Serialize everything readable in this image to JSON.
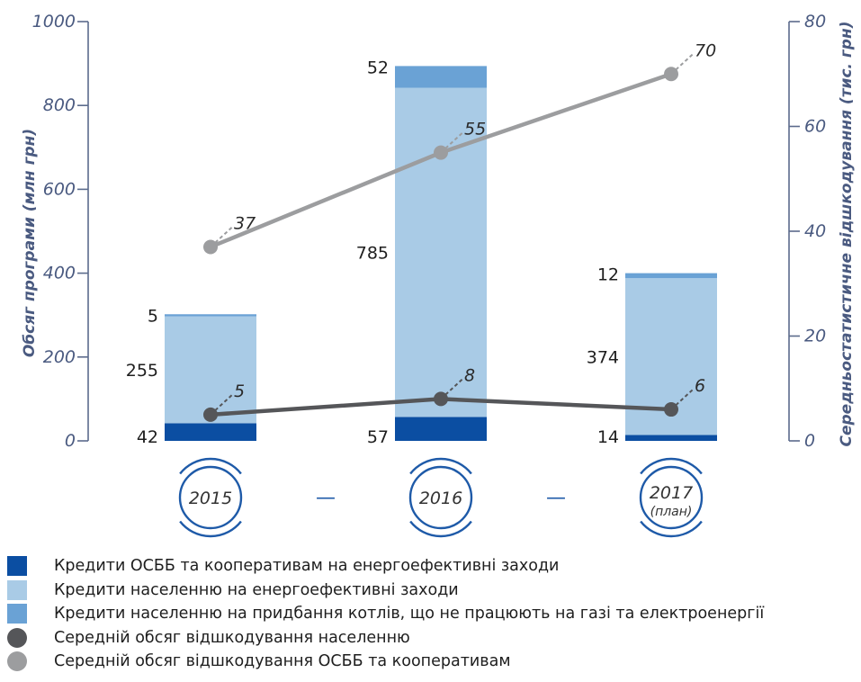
{
  "chart_data": {
    "type": "bar",
    "categories": [
      "2015",
      "2016",
      "2017"
    ],
    "category_sublabels": [
      "",
      "",
      "(план)"
    ],
    "left_axis": {
      "label": "Обсяг програми (млн грн)",
      "ylim": [
        0,
        1000
      ],
      "ticks": [
        "0",
        "200",
        "400",
        "600",
        "800",
        "1000"
      ]
    },
    "right_axis": {
      "label": "Середньостатистичне відшкодування (тис. грн)",
      "ylim": [
        0,
        80
      ],
      "ticks": [
        "0",
        "20",
        "40",
        "60",
        "80"
      ]
    },
    "bar_series": [
      {
        "name": "Кредити ОСББ та кооперативам на енергоефективні заходи",
        "color": "#0b4ea2",
        "values": [
          42,
          57,
          14
        ]
      },
      {
        "name": "Кредити населенню на енергоефективні заходи",
        "color": "#a9cbe6",
        "values": [
          255,
          785,
          374
        ]
      },
      {
        "name": "Кредити населенню на придбання котлів, що не працюють на газі та електроенергії",
        "color": "#6aa2d5",
        "values": [
          5,
          52,
          12
        ]
      }
    ],
    "line_series": [
      {
        "name": "Середній обсяг відшкодування населенню",
        "color": "#555659",
        "axis": "right",
        "values": [
          5,
          8,
          6
        ]
      },
      {
        "name": "Середній обсяг відшкодування ОСББ та кооперативам",
        "color": "#9c9d9f",
        "axis": "right",
        "values": [
          37,
          55,
          70
        ]
      }
    ],
    "connector_dash": "—",
    "legend_placement": "bottom",
    "grid": false
  }
}
